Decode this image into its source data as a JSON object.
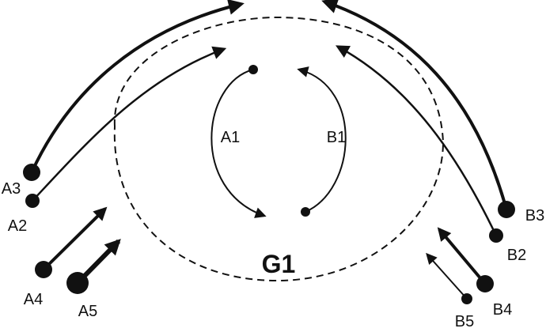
{
  "diagram": {
    "group_label": "G1",
    "colors": {
      "ink": "#111111",
      "background": "#ffffff"
    },
    "inner_arcs": [
      {
        "id": "A1",
        "label": "A1"
      },
      {
        "id": "B1",
        "label": "B1"
      }
    ],
    "left_agents": [
      {
        "id": "A2",
        "label": "A2"
      },
      {
        "id": "A3",
        "label": "A3"
      },
      {
        "id": "A4",
        "label": "A4"
      },
      {
        "id": "A5",
        "label": "A5"
      }
    ],
    "right_agents": [
      {
        "id": "B2",
        "label": "B2"
      },
      {
        "id": "B3",
        "label": "B3"
      },
      {
        "id": "B4",
        "label": "B4"
      },
      {
        "id": "B5",
        "label": "B5"
      }
    ]
  }
}
